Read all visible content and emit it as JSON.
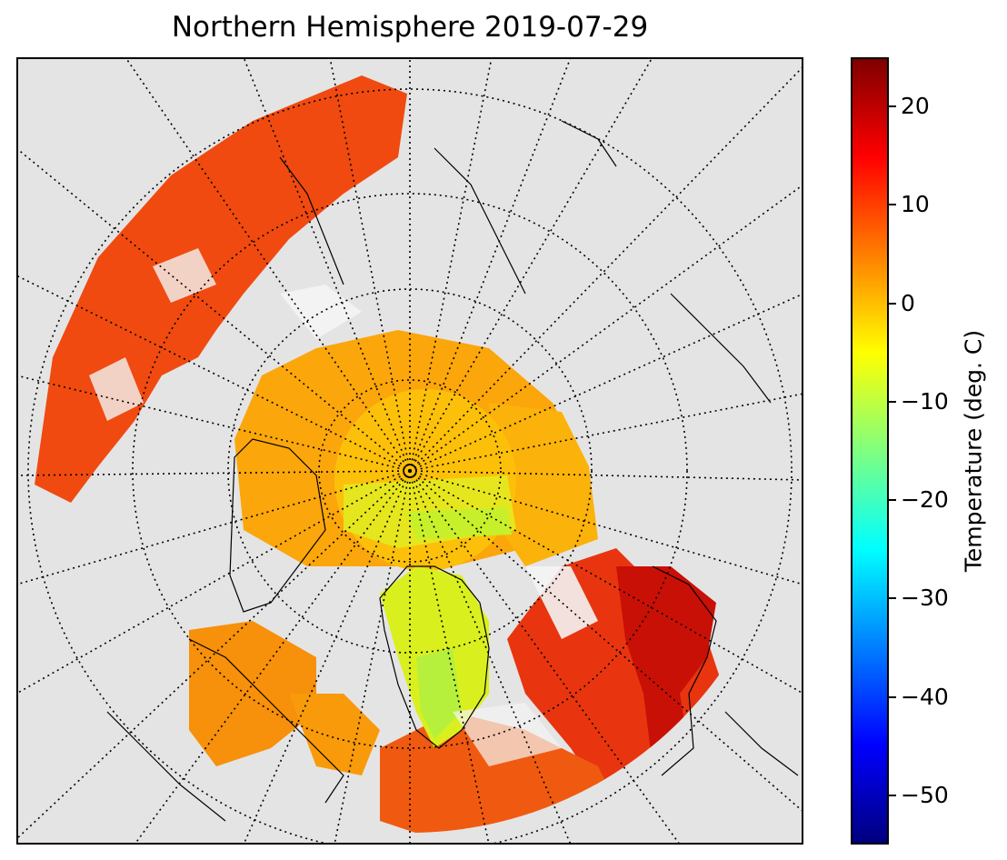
{
  "title": "Northern Hemisphere 2019-07-29",
  "map": {
    "projection": "north-polar-stereographic",
    "background_color": "#e4e4e4",
    "variable": "surface temperature",
    "graticule": "dotted",
    "pole_region_color": "yellow-orange",
    "greenland_color": "yellow-green"
  },
  "colorbar": {
    "label": "Temperature (deg. C)",
    "min": -55,
    "max": 25,
    "colormap": "jet",
    "ticks": [
      {
        "value": 20,
        "label": "20"
      },
      {
        "value": 10,
        "label": "10"
      },
      {
        "value": 0,
        "label": "0"
      },
      {
        "value": -10,
        "label": "−10"
      },
      {
        "value": -20,
        "label": "−20"
      },
      {
        "value": -30,
        "label": "−30"
      },
      {
        "value": -40,
        "label": "−40"
      },
      {
        "value": -50,
        "label": "−50"
      }
    ]
  }
}
